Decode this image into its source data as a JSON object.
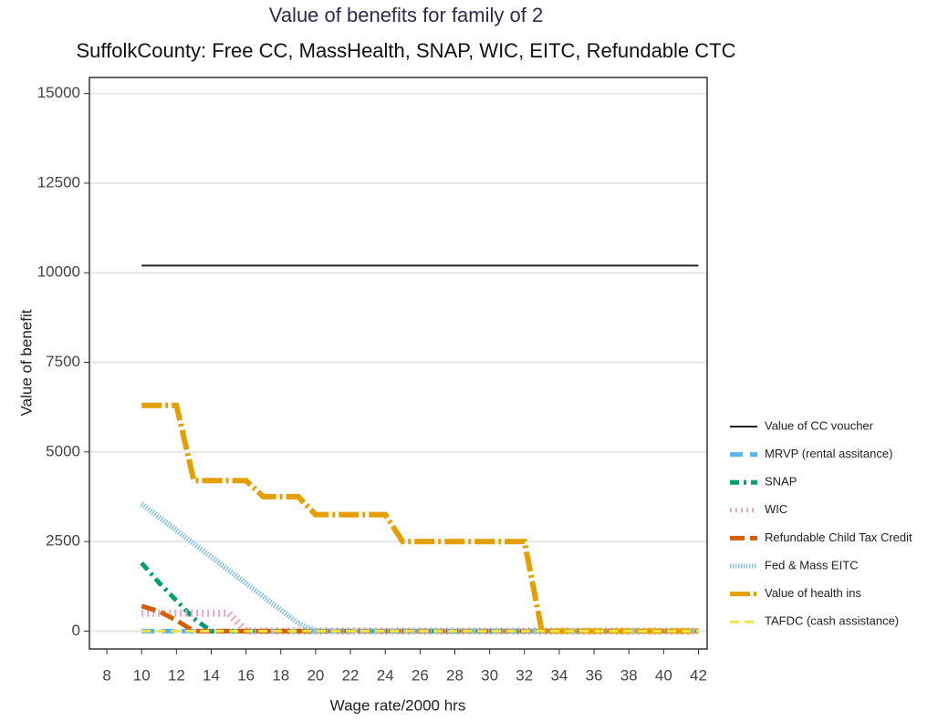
{
  "chart_data": {
    "type": "line",
    "title": "Value of benefits for family of 2",
    "subtitle": "SuffolkCounty: Free CC, MassHealth, SNAP, WIC, EITC, Refundable CTC",
    "x_label": "Wage rate/2000 hrs",
    "y_label": "Value of benefit",
    "x": [
      10,
      11,
      12,
      13,
      14,
      15,
      16,
      17,
      18,
      19,
      20,
      21,
      22,
      23,
      24,
      25,
      26,
      27,
      28,
      29,
      30,
      31,
      32,
      33,
      34,
      35,
      36,
      37,
      38,
      39,
      40,
      41,
      42
    ],
    "xlim": [
      7,
      42.5
    ],
    "xticks": [
      8,
      10,
      12,
      14,
      16,
      18,
      20,
      22,
      24,
      26,
      28,
      30,
      32,
      34,
      36,
      38,
      40,
      42
    ],
    "ylim": [
      -500,
      15450
    ],
    "yticks": [
      0,
      2500,
      5000,
      7500,
      10000,
      12500,
      15000
    ],
    "grid": true,
    "legend": "right",
    "series": [
      {
        "name": "Value of CC voucher",
        "color": "#222222",
        "dash": "none",
        "width": 2,
        "values": [
          10200,
          10200,
          10200,
          10200,
          10200,
          10200,
          10200,
          10200,
          10200,
          10200,
          10200,
          10200,
          10200,
          10200,
          10200,
          10200,
          10200,
          10200,
          10200,
          10200,
          10200,
          10200,
          10200,
          10200,
          10200,
          10200,
          10200,
          10200,
          10200,
          10200,
          10200,
          10200,
          10200
        ]
      },
      {
        "name": "MRVP (rental assitance)",
        "color": "#56b4e9",
        "dash": "14 8",
        "width": 5,
        "values": [
          0,
          0,
          0,
          0,
          0,
          0,
          0,
          0,
          0,
          0,
          0,
          0,
          0,
          0,
          0,
          0,
          0,
          0,
          0,
          0,
          0,
          0,
          0,
          0,
          0,
          0,
          0,
          0,
          0,
          0,
          0,
          0,
          0
        ]
      },
      {
        "name": "SNAP",
        "color": "#009e73",
        "dash": "10 5 3 5",
        "width": 5,
        "values": [
          1900,
          1350,
          850,
          350,
          0,
          0,
          0,
          0,
          0,
          0,
          0,
          0,
          0,
          0,
          0,
          0,
          0,
          0,
          0,
          0,
          0,
          0,
          0,
          0,
          0,
          0,
          0,
          0,
          0,
          0,
          0,
          0,
          0
        ]
      },
      {
        "name": "WIC",
        "color": "#e8a6c6",
        "dash": "2 4",
        "width": 8,
        "values": [
          500,
          500,
          500,
          500,
          500,
          500,
          0,
          0,
          0,
          0,
          0,
          0,
          0,
          0,
          0,
          0,
          0,
          0,
          0,
          0,
          0,
          0,
          0,
          0,
          0,
          0,
          0,
          0,
          0,
          0,
          0,
          0,
          0
        ]
      },
      {
        "name": "Refundable Child Tax Credit",
        "color": "#d55e00",
        "dash": "16 6",
        "width": 5,
        "values": [
          700,
          550,
          300,
          0,
          0,
          0,
          0,
          0,
          0,
          0,
          0,
          0,
          0,
          0,
          0,
          0,
          0,
          0,
          0,
          0,
          0,
          0,
          0,
          0,
          0,
          0,
          0,
          0,
          0,
          0,
          0,
          0,
          0
        ]
      },
      {
        "name": "Fed & Mass EITC",
        "color": "#8cc1e6",
        "dash": "1.5 1.5",
        "width": 6,
        "values": [
          3550,
          3180,
          2810,
          2440,
          2070,
          1700,
          1330,
          960,
          590,
          220,
          0,
          0,
          0,
          0,
          0,
          0,
          0,
          0,
          0,
          0,
          0,
          0,
          0,
          0,
          0,
          0,
          0,
          0,
          0,
          0,
          0,
          0,
          0
        ]
      },
      {
        "name": "Value of health ins",
        "color": "#e69f00",
        "dash": "22 4 3 4",
        "width": 6,
        "values": [
          6300,
          6300,
          6300,
          4200,
          4200,
          4200,
          4200,
          3750,
          3750,
          3750,
          3250,
          3250,
          3250,
          3250,
          3250,
          2500,
          2500,
          2500,
          2500,
          2500,
          2500,
          2500,
          2500,
          0,
          0,
          0,
          0,
          0,
          0,
          0,
          0,
          0,
          0
        ]
      },
      {
        "name": "TAFDC (cash assistance)",
        "color": "#f0e442",
        "dash": "10 6",
        "width": 3,
        "values": [
          0,
          0,
          0,
          0,
          0,
          0,
          0,
          0,
          0,
          0,
          0,
          0,
          0,
          0,
          0,
          0,
          0,
          0,
          0,
          0,
          0,
          0,
          0,
          0,
          0,
          0,
          0,
          0,
          0,
          0,
          0,
          0,
          0
        ]
      }
    ]
  }
}
